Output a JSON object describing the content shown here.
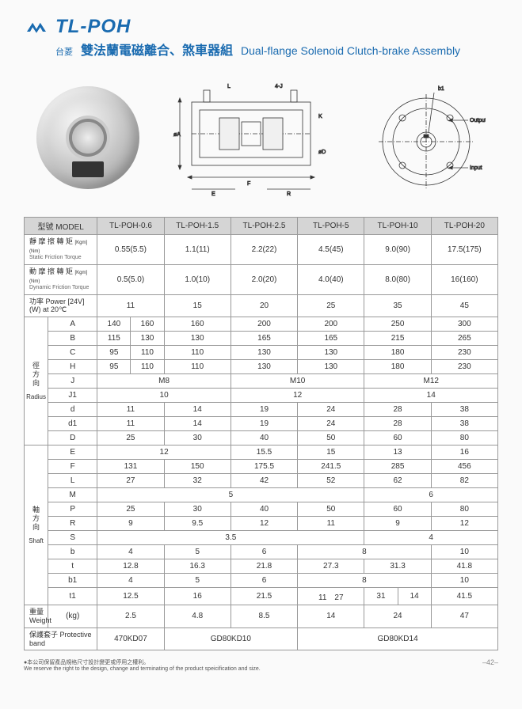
{
  "header": {
    "model_code": "TL-POH",
    "brand": "台菱",
    "title_cn": "雙法蘭電磁離合、煞車器組",
    "title_en": "Dual-flange Solenoid Clutch-brake Assembly"
  },
  "diagram_labels": {
    "output": "Output",
    "input": "Input"
  },
  "colors": {
    "brand": "#1a6bb0",
    "header_bg": "#d5d5d5",
    "border": "#999999"
  },
  "table": {
    "model_label": "型號 MODEL",
    "models": [
      "TL-POH-0.6",
      "TL-POH-1.5",
      "TL-POH-2.5",
      "TL-POH-5",
      "TL-POH-10",
      "TL-POH-20"
    ],
    "rows_top": [
      {
        "label_cn": "靜 摩 擦 轉 矩",
        "label_sub": "Static Friction Torque",
        "label_unit": "[Kgm](Nm)",
        "values": [
          "0.55(5.5)",
          "1.1(11)",
          "2.2(22)",
          "4.5(45)",
          "9.0(90)",
          "17.5(175)"
        ]
      },
      {
        "label_cn": "動 摩 擦 轉 矩",
        "label_sub": "Dynamic Friction Torque",
        "label_unit": "[Kgm](Nm)",
        "values": [
          "0.5(5.0)",
          "1.0(10)",
          "2.0(20)",
          "4.0(40)",
          "8.0(80)",
          "16(160)"
        ]
      },
      {
        "label_cn": "功率 Power [24V](W) at 20℃",
        "label_sub": "",
        "label_unit": "",
        "values": [
          "11",
          "15",
          "20",
          "25",
          "35",
          "45"
        ]
      }
    ],
    "radius": {
      "label_cn": "徑方向",
      "label_en": "Radius",
      "rows": [
        {
          "k": "A",
          "v": [
            [
              "140",
              "160"
            ],
            "160",
            "200",
            "200",
            "250",
            "300"
          ]
        },
        {
          "k": "B",
          "v": [
            [
              "115",
              "130"
            ],
            "130",
            "165",
            "165",
            "215",
            "265"
          ]
        },
        {
          "k": "C",
          "v": [
            [
              "95",
              "110"
            ],
            "110",
            "130",
            "130",
            "180",
            "230"
          ]
        },
        {
          "k": "H",
          "v": [
            [
              "95",
              "110"
            ],
            "110",
            "130",
            "130",
            "180",
            "230"
          ]
        },
        {
          "k": "J",
          "span": [
            {
              "text": "M8",
              "span": 2
            },
            {
              "text": "M10",
              "span": 2
            },
            {
              "text": "M12",
              "span": 2
            }
          ]
        },
        {
          "k": "J1",
          "span": [
            {
              "text": "10",
              "span": 2
            },
            {
              "text": "12",
              "span": 2
            },
            {
              "text": "14",
              "span": 2
            }
          ]
        },
        {
          "k": "d",
          "v": [
            "11",
            "14",
            "19",
            "24",
            "28",
            "38"
          ]
        },
        {
          "k": "d1",
          "v": [
            "11",
            "14",
            "19",
            "24",
            "28",
            "38"
          ]
        },
        {
          "k": "D",
          "v": [
            "25",
            "30",
            "40",
            "50",
            "60",
            "80"
          ]
        }
      ]
    },
    "shaft": {
      "label_cn": "軸方向",
      "label_en": "Shaft",
      "rows": [
        {
          "k": "E",
          "v": [
            {
              "text": "12",
              "span": 2
            },
            "15.5",
            "15",
            "13",
            "16"
          ]
        },
        {
          "k": "F",
          "v": [
            "131",
            "150",
            "175.5",
            "241.5",
            "285",
            "456"
          ]
        },
        {
          "k": "L",
          "v": [
            "27",
            "32",
            "42",
            "52",
            "62",
            "82"
          ]
        },
        {
          "k": "M",
          "v": [
            {
              "text": "5",
              "span": 4
            },
            {
              "text": "6",
              "span": 2
            }
          ]
        },
        {
          "k": "P",
          "v": [
            "25",
            "30",
            "40",
            "50",
            "60",
            "80"
          ]
        },
        {
          "k": "R",
          "v": [
            "9",
            "9.5",
            "12",
            "11",
            "9",
            "12"
          ]
        },
        {
          "k": "S",
          "v": [
            {
              "text": "3.5",
              "span": 4
            },
            {
              "text": "4",
              "span": 2
            }
          ]
        },
        {
          "k": "b",
          "v": [
            "4",
            "5",
            "6",
            {
              "text": "8",
              "span": 2
            },
            "10"
          ]
        },
        {
          "k": "t",
          "v": [
            "12.8",
            "16.3",
            "21.8",
            "27.3",
            "31.3",
            "41.8"
          ]
        },
        {
          "k": "b1",
          "v": [
            "4",
            "5",
            "6",
            {
              "text": "8",
              "span": 2
            },
            "10"
          ]
        },
        {
          "k": "t1",
          "v": [
            "12.5",
            "16",
            "21.5",
            [
              "11",
              "27"
            ],
            [
              "31",
              "14"
            ],
            "41.5"
          ]
        }
      ]
    },
    "weight": {
      "label": "重量 Weight",
      "unit": "(kg)",
      "v": [
        "2.5",
        "4.8",
        "8.5",
        "14",
        "24",
        "47"
      ]
    },
    "band": {
      "label": "保護套子 Protective band",
      "v": [
        {
          "text": "470KD07",
          "span": 1
        },
        {
          "text": "GD80KD10",
          "span": 2
        },
        {
          "text": "GD80KD14",
          "span": 3
        }
      ]
    }
  },
  "footer": {
    "note_cn": "●本公司保留產品規格尺寸設計變更或停用之權利。",
    "note_en": "We reserve the right to the design, change and terminating of the product speicification and size.",
    "page": "–42–"
  }
}
